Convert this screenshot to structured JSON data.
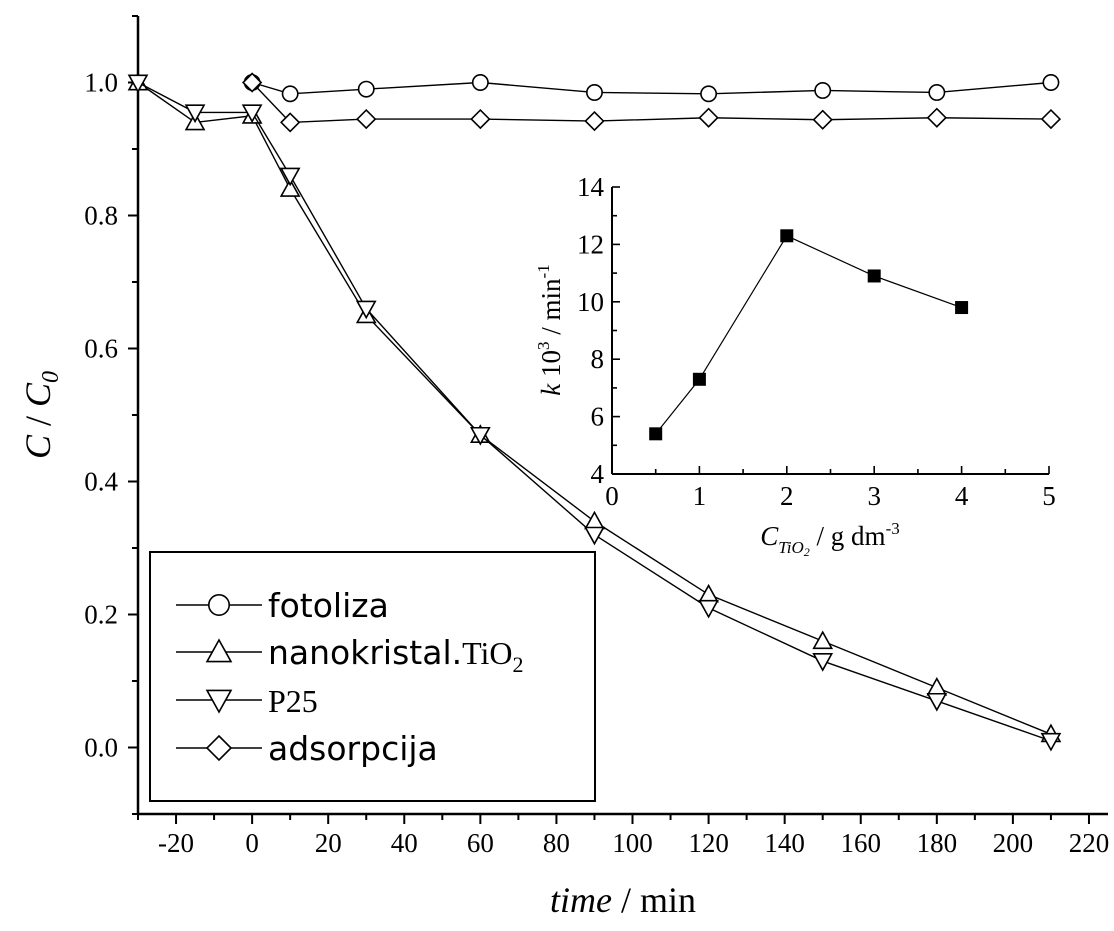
{
  "chart_data": [
    {
      "type": "line",
      "title": "",
      "xlabel": {
        "italic": "time",
        "rest": " / min"
      },
      "ylabel": {
        "italic_c": "C",
        "slash": " / ",
        "italic_c0": "C",
        "sub": "0"
      },
      "xlim": [
        -30,
        225
      ],
      "ylim": [
        -0.1,
        1.1
      ],
      "xticks": [
        -20,
        0,
        20,
        40,
        60,
        80,
        100,
        120,
        140,
        160,
        180,
        200,
        220
      ],
      "xtick_labels": [
        "-20",
        "0",
        "20",
        "40",
        "60",
        "80",
        "100",
        "120",
        "140",
        "160",
        "180",
        "200",
        "220"
      ],
      "yticks": [
        0.0,
        0.2,
        0.4,
        0.6,
        0.8,
        1.0
      ],
      "ytick_labels": [
        "0.0",
        "0.2",
        "0.4",
        "0.6",
        "0.8",
        "1.0"
      ],
      "grid": false,
      "legend_position": "bottom-left",
      "series": [
        {
          "name": "fotoliza",
          "marker": "circle",
          "x": [
            0,
            10,
            30,
            60,
            90,
            120,
            150,
            180,
            210
          ],
          "y": [
            1.0,
            0.983,
            0.99,
            1.0,
            0.985,
            0.983,
            0.988,
            0.985,
            1.0
          ]
        },
        {
          "name": "nanokristal.TiO2",
          "legend_text": "nanokristal.",
          "legend_formula": {
            "main": "TiO",
            "sub": "2"
          },
          "marker": "triangle-up",
          "x": [
            -30,
            -15,
            0,
            10,
            30,
            60,
            90,
            120,
            150,
            180,
            210
          ],
          "y": [
            1.0,
            0.94,
            0.95,
            0.84,
            0.65,
            0.47,
            0.34,
            0.23,
            0.16,
            0.09,
            0.02
          ]
        },
        {
          "name": "P25",
          "marker": "triangle-down",
          "x": [
            -30,
            -15,
            0,
            10,
            30,
            60,
            90,
            120,
            150,
            180,
            210
          ],
          "y": [
            1.0,
            0.955,
            0.955,
            0.86,
            0.66,
            0.47,
            0.32,
            0.21,
            0.13,
            0.07,
            0.01
          ]
        },
        {
          "name": "adsorpcija",
          "marker": "diamond",
          "x": [
            0,
            10,
            30,
            60,
            90,
            120,
            150,
            180,
            210
          ],
          "y": [
            1.0,
            0.94,
            0.945,
            0.945,
            0.942,
            0.947,
            0.944,
            0.947,
            0.945
          ]
        }
      ]
    },
    {
      "type": "line",
      "inset": true,
      "title": "",
      "xlabel": {
        "italic_c": "C",
        "sub": "TiO",
        "subsub": "2",
        "rest": " / g dm",
        "sup": "-3"
      },
      "ylabel": {
        "italic_k": "k",
        "mid": " 10",
        "sup1": "3",
        "rest": " / min",
        "sup2": "-1"
      },
      "xlim": [
        0,
        5
      ],
      "ylim": [
        4,
        14
      ],
      "xticks": [
        0,
        1,
        2,
        3,
        4,
        5
      ],
      "xtick_labels": [
        "0",
        "1",
        "2",
        "3",
        "4",
        "5"
      ],
      "yticks": [
        4,
        6,
        8,
        10,
        12,
        14
      ],
      "ytick_labels": [
        "4",
        "6",
        "8",
        "10",
        "12",
        "14"
      ],
      "grid": false,
      "series": [
        {
          "marker": "filled-square",
          "x": [
            0.5,
            1,
            2,
            3,
            4
          ],
          "y": [
            5.4,
            7.3,
            12.3,
            10.9,
            9.8
          ]
        }
      ]
    }
  ]
}
